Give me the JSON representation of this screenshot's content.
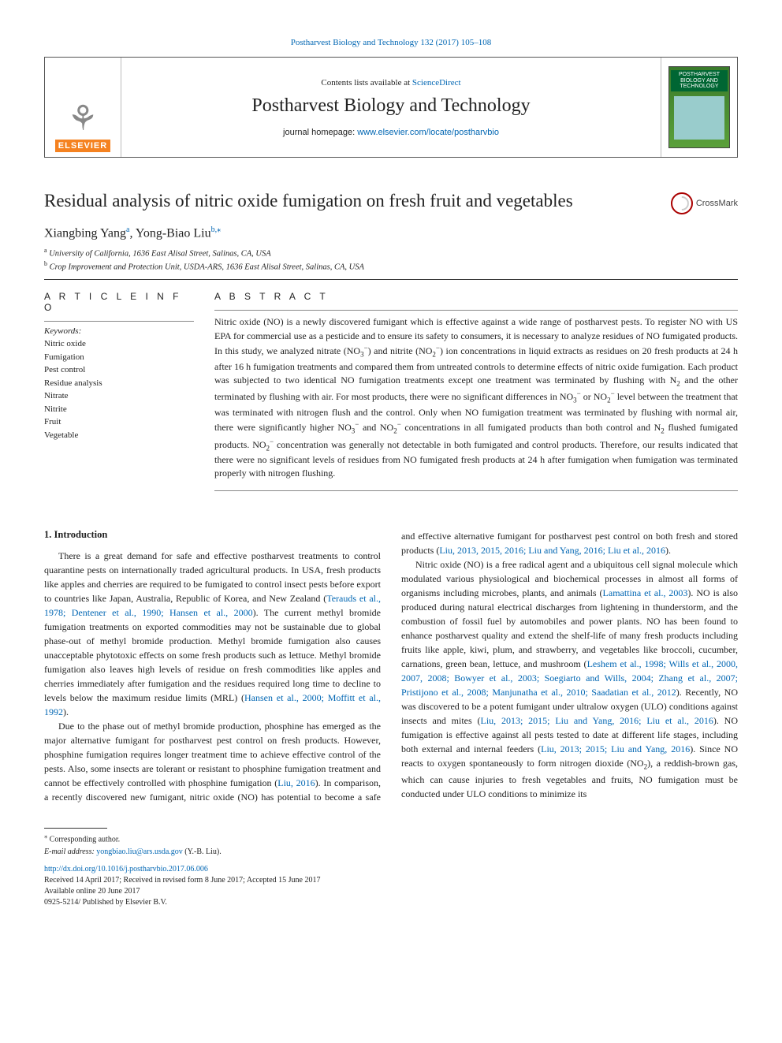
{
  "top_citation": "Postharvest Biology and Technology 132 (2017) 105–108",
  "header": {
    "contents_prefix": "Contents lists available at ",
    "contents_link": "ScienceDirect",
    "journal": "Postharvest Biology and Technology",
    "homepage_prefix": "journal homepage: ",
    "homepage_url": "www.elsevier.com/locate/postharvbio",
    "elsevier_word": "ELSEVIER",
    "cover_line1": "POSTHARVEST",
    "cover_line2": "BIOLOGY AND",
    "cover_line3": "TECHNOLOGY"
  },
  "crossmark_label": "CrossMark",
  "title": "Residual analysis of nitric oxide fumigation on fresh fruit and vegetables",
  "authors": {
    "a1_name": "Xiangbing Yang",
    "a1_sup": "a",
    "a2_name": "Yong-Biao Liu",
    "a2_sup": "b,",
    "a2_corr": "⁎"
  },
  "affiliations": {
    "a_sup": "a",
    "a_text": " University of California, 1636 East Alisal Street, Salinas, CA, USA",
    "b_sup": "b",
    "b_text": " Crop Improvement and Protection Unit, USDA-ARS, 1636 East Alisal Street, Salinas, CA, USA"
  },
  "article_info_head": "A R T I C L E  I N F O",
  "abstract_head": "A B S T R A C T",
  "keywords_label": "Keywords:",
  "keywords": [
    "Nitric oxide",
    "Fumigation",
    "Pest control",
    "Residue analysis",
    "Nitrate",
    "Nitrite",
    "Fruit",
    "Vegetable"
  ],
  "abstract_html": "Nitric oxide (NO) is a newly discovered fumigant which is effective against a wide range of postharvest pests. To register NO with US EPA for commercial use as a pesticide and to ensure its safety to consumers, it is necessary to analyze residues of NO fumigated products. In this study, we analyzed nitrate (NO<sub>3</sub><sup class='charge'>−</sup>) and nitrite (NO<sub>2</sub><sup class='charge'>−</sup>) ion concentrations in liquid extracts as residues on 20 fresh products at 24 h after 16 h fumigation treatments and compared them from untreated controls to determine effects of nitric oxide fumigation. Each product was subjected to two identical NO fumigation treatments except one treatment was terminated by flushing with N<sub>2</sub> and the other terminated by flushing with air. For most products, there were no significant differences in NO<sub>3</sub><sup class='charge'>−</sup> or NO<sub>2</sub><sup class='charge'>−</sup> level between the treatment that was terminated with nitrogen flush and the control. Only when NO fumigation treatment was terminated by flushing with normal air, there were significantly higher NO<sub>3</sub><sup class='charge'>−</sup> and NO<sub>2</sub><sup class='charge'>−</sup> concentrations in all fumigated products than both control and N<sub>2</sub> flushed fumigated products. NO<sub>2</sub><sup class='charge'>−</sup> concentration was generally not detectable in both fumigated and control products. Therefore, our results indicated that there were no significant levels of residues from NO fumigated fresh products at 24 h after fumigation when fumigation was terminated properly with nitrogen flushing.",
  "section1_head": "1. Introduction",
  "body": {
    "p1_html": "There is a great demand for safe and effective postharvest treatments to control quarantine pests on internationally traded agricultural products. In USA, fresh products like apples and cherries are required to be fumigated to control insect pests before export to countries like Japan, Australia, Republic of Korea, and New Zealand (<a href='#'>Terauds et al., 1978; Dentener et al., 1990; Hansen et al., 2000</a>). The current methyl bromide fumigation treatments on exported commodities may not be sustainable due to global phase-out of methyl bromide production. Methyl bromide fumigation also causes unacceptable phytotoxic effects on some fresh products such as lettuce. Methyl bromide fumigation also leaves high levels of residue on fresh commodities like apples and cherries immediately after fumigation and the residues required long time to decline to levels below the maximum residue limits (MRL) (<a href='#'>Hansen et al., 2000; Moffitt et al., 1992</a>).",
    "p2_html": "Due to the phase out of methyl bromide production, phosphine has emerged as the major alternative fumigant for postharvest pest control on fresh products. However, phosphine fumigation requires longer treatment time to achieve effective control of the pests. Also, some insects are tolerant or resistant to phosphine fumigation treatment and cannot be effectively controlled with phosphine fumigation (<a href='#'>Liu, 2016</a>). In comparison, a recently discovered new fumigant, nitric oxide (NO) has potential to become a safe and effective alternative fumigant for postharvest pest control on both fresh and stored products (<a href='#'>Liu, 2013, 2015, 2016; Liu and Yang, 2016; Liu et al., 2016</a>).",
    "p3_html": "Nitric oxide (NO) is a free radical agent and a ubiquitous cell signal molecule which modulated various physiological and biochemical processes in almost all forms of organisms including microbes, plants, and animals (<a href='#'>Lamattina et al., 2003</a>). NO is also produced during natural electrical discharges from lightening in thunderstorm, and the combustion of fossil fuel by automobiles and power plants. NO has been found to enhance postharvest quality and extend the shelf-life of many fresh products including fruits like apple, kiwi, plum, and strawberry, and vegetables like broccoli, cucumber, carnations, green bean, lettuce, and mushroom (<a href='#'>Leshem et al., 1998; Wills et al., 2000, 2007, 2008; Bowyer et al., 2003; Soegiarto and Wills, 2004; Zhang et al., 2007; Pristijono et al., 2008; Manjunatha et al., 2010; Saadatian et al., 2012</a>). Recently, NO was discovered to be a potent fumigant under ultralow oxygen (ULO) conditions against insects and mites (<a href='#'>Liu, 2013; 2015; Liu and Yang, 2016; Liu et al., 2016</a>). NO fumigation is effective against all pests tested to date at different life stages, including both external and internal feeders (<a href='#'>Liu, 2013; 2015; Liu and Yang, 2016</a>). Since NO reacts to oxygen spontaneously to form nitrogen dioxide (NO<sub>2</sub>), a reddish-brown gas, which can cause injuries to fresh vegetables and fruits, NO fumigation must be conducted under ULO conditions to minimize its"
  },
  "footnotes": {
    "corr_marker": "⁎",
    "corr_text": " Corresponding author.",
    "email_label": "E-mail address: ",
    "email": "yongbiao.liu@ars.usda.gov",
    "email_suffix": " (Y.-B. Liu)."
  },
  "doi": {
    "url": "http://dx.doi.org/10.1016/j.postharvbio.2017.06.006",
    "received": "Received 14 April 2017; Received in revised form 8 June 2017; Accepted 15 June 2017",
    "available": "Available online 20 June 2017",
    "issn": "0925-5214/ Published by Elsevier B.V."
  }
}
